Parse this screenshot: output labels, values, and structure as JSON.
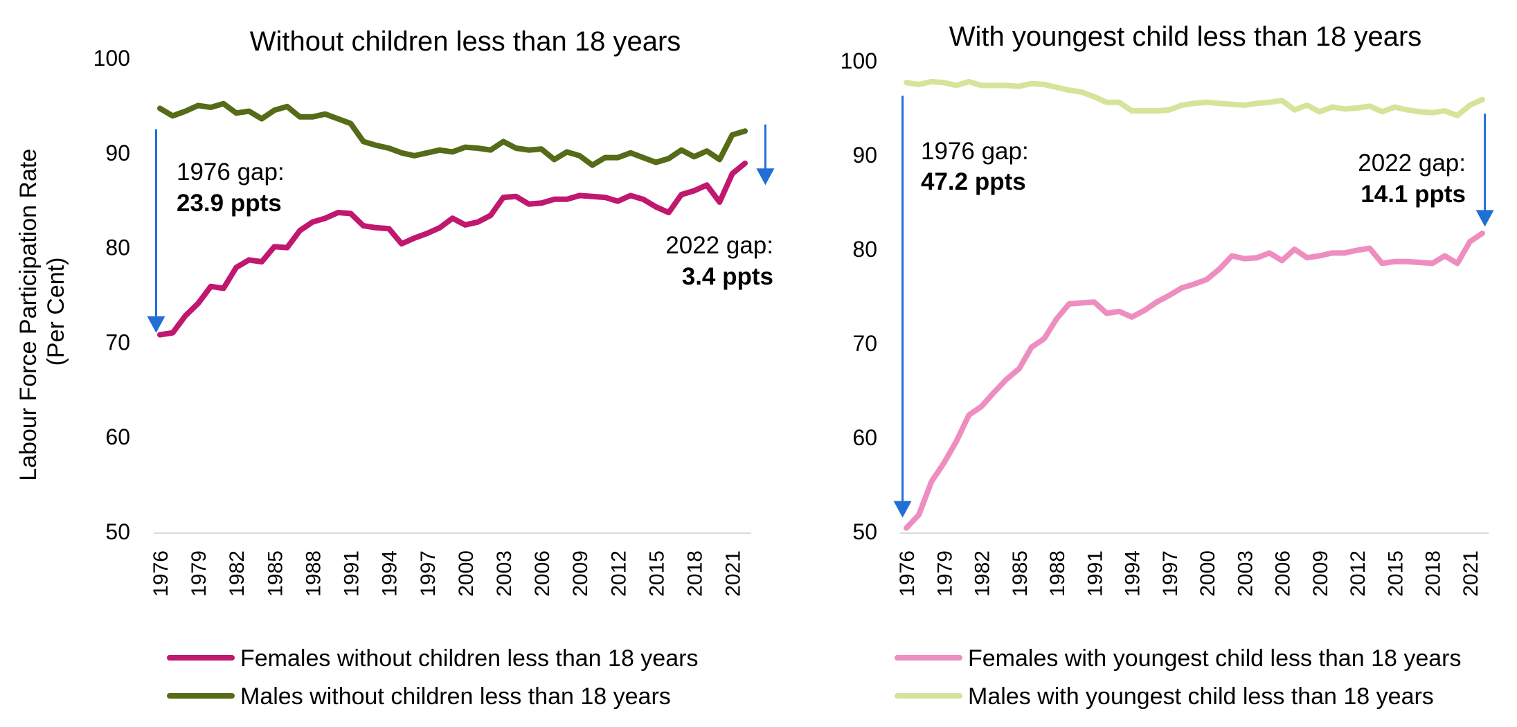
{
  "shared": {
    "ylabel_lines": [
      "Labour Force Participation Rate",
      "(Per Cent)"
    ]
  },
  "chart_data": [
    {
      "type": "line",
      "title": "Without children less than 18 years",
      "ylim": [
        50,
        100
      ],
      "yticks": [
        50,
        60,
        70,
        80,
        90,
        100
      ],
      "x": [
        1976,
        1977,
        1978,
        1979,
        1980,
        1981,
        1982,
        1983,
        1984,
        1985,
        1986,
        1987,
        1988,
        1989,
        1990,
        1991,
        1992,
        1993,
        1994,
        1995,
        1996,
        1997,
        1998,
        1999,
        2000,
        2001,
        2002,
        2003,
        2004,
        2005,
        2006,
        2007,
        2008,
        2009,
        2010,
        2011,
        2012,
        2013,
        2014,
        2015,
        2016,
        2017,
        2018,
        2019,
        2020,
        2021,
        2022
      ],
      "xtick_labels": [
        "1976",
        "1979",
        "1982",
        "1985",
        "1988",
        "1991",
        "1994",
        "1997",
        "2000",
        "2003",
        "2006",
        "2009",
        "2012",
        "2015",
        "2018",
        "2021"
      ],
      "grid": false,
      "legend_position": "bottom",
      "series": [
        {
          "name": "Females without children less than 18 years",
          "color": "#C0176F",
          "values": [
            70.8,
            71.0,
            72.8,
            74.1,
            75.9,
            75.7,
            77.9,
            78.7,
            78.5,
            80.1,
            80.0,
            81.8,
            82.7,
            83.1,
            83.7,
            83.6,
            82.3,
            82.1,
            82.0,
            80.4,
            81.0,
            81.5,
            82.1,
            83.1,
            82.4,
            82.7,
            83.4,
            85.3,
            85.4,
            84.6,
            84.7,
            85.1,
            85.1,
            85.5,
            85.4,
            85.3,
            84.9,
            85.5,
            85.1,
            84.3,
            83.7,
            85.6,
            86.0,
            86.6,
            84.8,
            87.8,
            88.9
          ]
        },
        {
          "name": "Males without children less than 18 years",
          "color": "#556B17",
          "values": [
            94.7,
            93.9,
            94.4,
            95.0,
            94.8,
            95.2,
            94.2,
            94.4,
            93.6,
            94.5,
            94.9,
            93.8,
            93.8,
            94.1,
            93.6,
            93.1,
            91.2,
            90.8,
            90.5,
            90.0,
            89.7,
            90.0,
            90.3,
            90.1,
            90.6,
            90.5,
            90.3,
            91.2,
            90.5,
            90.3,
            90.4,
            89.3,
            90.1,
            89.7,
            88.7,
            89.5,
            89.5,
            90.0,
            89.5,
            89.0,
            89.4,
            90.3,
            89.6,
            90.2,
            89.3,
            91.9,
            92.3
          ]
        }
      ],
      "annotations": [
        {
          "text": "1976 gap:",
          "bold_text": "23.9 ppts",
          "align": "left"
        },
        {
          "text": "2022 gap:",
          "bold_text": "3.4 ppts",
          "align": "right"
        }
      ],
      "arrows": [
        {
          "color": "#1F6FD6",
          "x": 1975.7,
          "from": 92.5,
          "to": 71.0
        },
        {
          "color": "#1F6FD6",
          "x": 2023.6,
          "from": 93.0,
          "to": 86.6
        }
      ]
    },
    {
      "type": "line",
      "title": "With youngest child less than 18 years",
      "ylim": [
        50,
        100
      ],
      "yticks": [
        50,
        60,
        70,
        80,
        90,
        100
      ],
      "x": [
        1976,
        1977,
        1978,
        1979,
        1980,
        1981,
        1982,
        1983,
        1984,
        1985,
        1986,
        1987,
        1988,
        1989,
        1990,
        1991,
        1992,
        1993,
        1994,
        1995,
        1996,
        1997,
        1998,
        1999,
        2000,
        2001,
        2002,
        2003,
        2004,
        2005,
        2006,
        2007,
        2008,
        2009,
        2010,
        2011,
        2012,
        2013,
        2014,
        2015,
        2016,
        2017,
        2018,
        2019,
        2020,
        2021,
        2022
      ],
      "xtick_labels": [
        "1976",
        "1979",
        "1982",
        "1985",
        "1988",
        "1991",
        "1994",
        "1997",
        "2000",
        "2003",
        "2006",
        "2009",
        "2012",
        "2015",
        "2018",
        "2021"
      ],
      "grid": false,
      "legend_position": "bottom",
      "series": [
        {
          "name": "Females with youngest child less than 18 years",
          "color": "#EE8DC0",
          "values": [
            50.4,
            51.8,
            55.3,
            57.3,
            59.6,
            62.4,
            63.3,
            64.8,
            66.2,
            67.3,
            69.6,
            70.5,
            72.6,
            74.2,
            74.3,
            74.4,
            73.2,
            73.4,
            72.8,
            73.5,
            74.4,
            75.1,
            75.9,
            76.3,
            76.8,
            77.9,
            79.3,
            79.0,
            79.1,
            79.6,
            78.8,
            80.0,
            79.1,
            79.3,
            79.6,
            79.6,
            79.9,
            80.1,
            78.5,
            78.7,
            78.7,
            78.6,
            78.5,
            79.3,
            78.5,
            80.8,
            81.7
          ]
        },
        {
          "name": "Males with youngest child less than 18 years",
          "color": "#D4E59A",
          "values": [
            97.7,
            97.5,
            97.8,
            97.7,
            97.4,
            97.8,
            97.4,
            97.4,
            97.4,
            97.3,
            97.6,
            97.5,
            97.2,
            96.9,
            96.7,
            96.2,
            95.6,
            95.6,
            94.7,
            94.7,
            94.7,
            94.8,
            95.3,
            95.5,
            95.6,
            95.5,
            95.4,
            95.3,
            95.5,
            95.6,
            95.8,
            94.8,
            95.3,
            94.6,
            95.1,
            94.9,
            95.0,
            95.2,
            94.6,
            95.1,
            94.8,
            94.6,
            94.5,
            94.7,
            94.2,
            95.3,
            95.9
          ]
        }
      ],
      "annotations": [
        {
          "text": "1976 gap:",
          "bold_text": "47.2 ppts",
          "align": "left"
        },
        {
          "text": "2022 gap:",
          "bold_text": "14.1 ppts",
          "align": "right"
        }
      ],
      "arrows": [
        {
          "color": "#1F6FD6",
          "x": 1975.7,
          "from": 96.3,
          "to": 51.5
        },
        {
          "color": "#1F6FD6",
          "x": 2022.2,
          "from": 94.4,
          "to": 82.4
        }
      ]
    }
  ]
}
